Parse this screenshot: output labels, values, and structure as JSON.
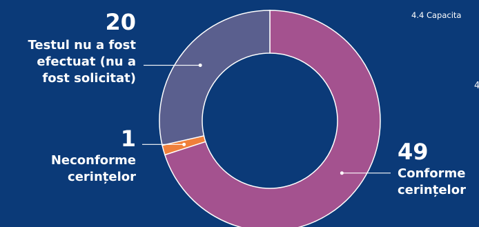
{
  "header": {
    "title": "4.4 Capacita",
    "stray": "4"
  },
  "chart_data": {
    "type": "pie",
    "donut": true,
    "segments": [
      {
        "label": "Conforme cerințelor",
        "label_lines": [
          "Conforme",
          "cerințelor"
        ],
        "value": 49,
        "color": "#a4528f"
      },
      {
        "label": "Neconforme cerințelor",
        "label_lines": [
          "Neconforme",
          "cerințelor"
        ],
        "value": 1,
        "color": "#ef7f3b"
      },
      {
        "label": "Testul nu a fost efectuat (nu a fost solicitat)",
        "label_lines": [
          "Testul nu a fost",
          "efectuat (nu a",
          "fost solicitat)"
        ],
        "value": 20,
        "color": "#5a5f8e"
      }
    ]
  }
}
